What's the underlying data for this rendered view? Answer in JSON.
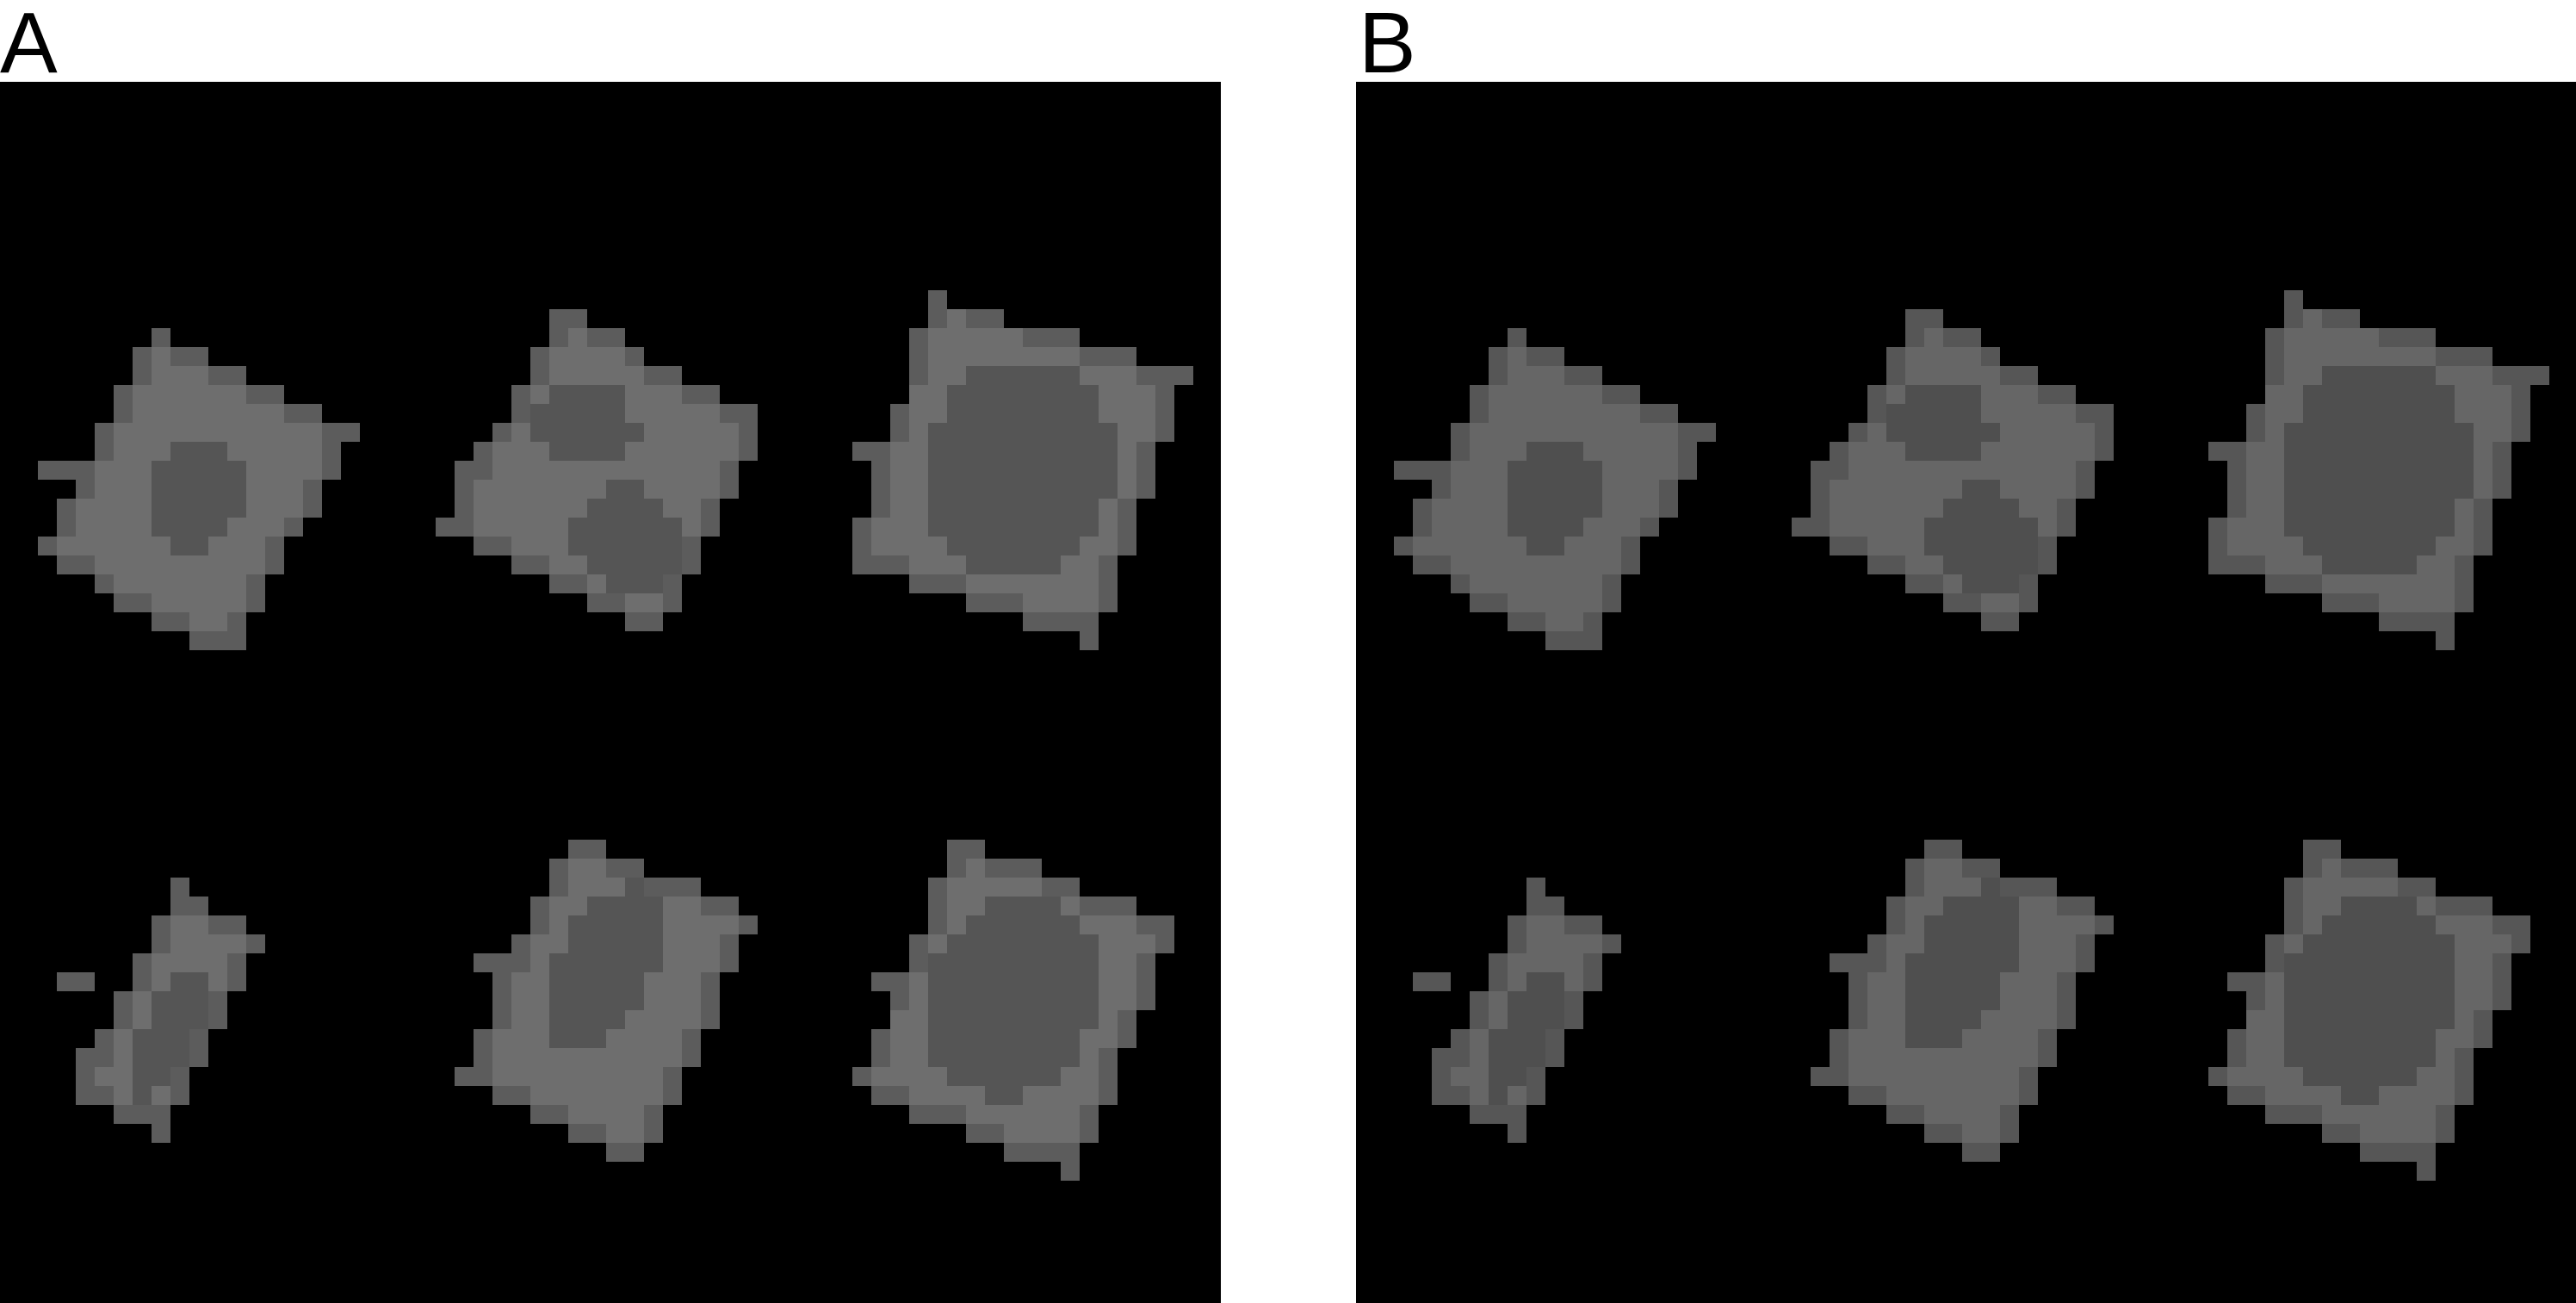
{
  "panels": [
    {
      "id": "A",
      "label": "A",
      "background_color": "#000000",
      "shape_colors": {
        "outline": "#6e6e6e",
        "inner": "#555555",
        "tip": "#5c5c5c"
      },
      "objects": [
        {
          "name": "rectangle-one-hole"
        },
        {
          "name": "rectangle-two-holes"
        },
        {
          "name": "rectangle-large-hole"
        },
        {
          "name": "narrow-bar"
        },
        {
          "name": "rectangle-hole-bend"
        },
        {
          "name": "rectangle-hole-notch"
        }
      ]
    },
    {
      "id": "B",
      "label": "B",
      "background_color": "#000000",
      "shape_colors": {
        "outline": "#666666",
        "inner": "#4f4f4f",
        "tip": "#565656"
      },
      "objects": [
        {
          "name": "rectangle-one-hole"
        },
        {
          "name": "rectangle-two-holes"
        },
        {
          "name": "rectangle-large-hole"
        },
        {
          "name": "narrow-bar"
        },
        {
          "name": "rectangle-hole-bend"
        },
        {
          "name": "rectangle-hole-notch"
        }
      ]
    }
  ]
}
